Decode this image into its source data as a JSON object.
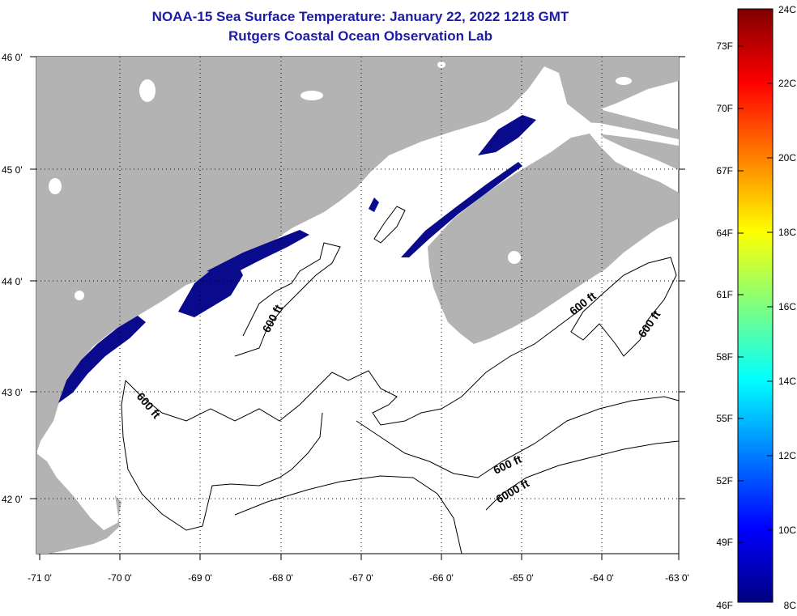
{
  "title": {
    "line1": "NOAA-15 Sea Surface Temperature:  January 22, 2022 1218 GMT",
    "line2": "Rutgers Coastal Ocean Observation Lab"
  },
  "map": {
    "lon_ticks": [
      "-71 0'",
      "-70 0'",
      "-69 0'",
      "-68 0'",
      "-67 0'",
      "-66 0'",
      "-65 0'",
      "-64 0'",
      "-63 0'"
    ],
    "lat_ticks": [
      "46 0'",
      "45 0'",
      "44 0'",
      "43 0'",
      "42 0'"
    ],
    "contour_labels": [
      "600 ft",
      "600 ft",
      "600 ft",
      "600 ft",
      "600 ft",
      "6000 ft"
    ]
  },
  "colorbar": {
    "fahrenheit": [
      "73F",
      "70F",
      "67F",
      "64F",
      "61F",
      "58F",
      "55F",
      "52F",
      "49F",
      "46F"
    ],
    "celsius": [
      "24C",
      "22C",
      "20C",
      "18C",
      "16C",
      "14C",
      "12C",
      "10C",
      "8C"
    ]
  },
  "colors": {
    "land": "#b3b3b3",
    "water": "#ffffff",
    "cold_water": "#0a0a8c",
    "title": "#1c1ca8"
  }
}
